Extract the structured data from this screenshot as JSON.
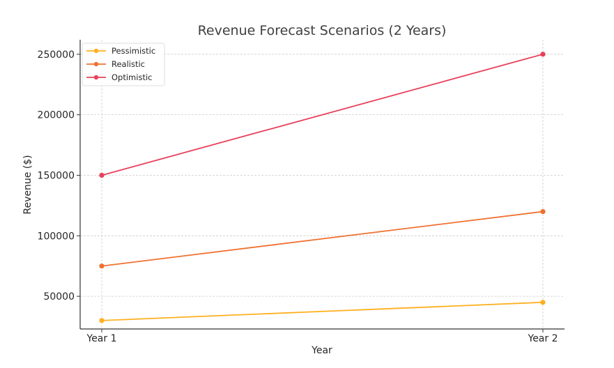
{
  "chart_data": {
    "type": "line",
    "title": "Revenue Forecast Scenarios (2 Years)",
    "xlabel": "Year",
    "ylabel": "Revenue ($)",
    "categories": [
      "Year 1",
      "Year 2"
    ],
    "ylim": [
      23000,
      262000
    ],
    "yticks": [
      50000,
      100000,
      150000,
      200000,
      250000
    ],
    "ytick_labels": [
      "50000",
      "100000",
      "150000",
      "200000",
      "250000"
    ],
    "grid": true,
    "legend_position": "top-left",
    "series": [
      {
        "name": "Pessimistic",
        "values": [
          30000,
          45000
        ],
        "color": "#ffb020"
      },
      {
        "name": "Realistic",
        "values": [
          75000,
          120000
        ],
        "color": "#f07030"
      },
      {
        "name": "Optimistic",
        "values": [
          150000,
          250000
        ],
        "color": "#e8405a"
      }
    ]
  }
}
